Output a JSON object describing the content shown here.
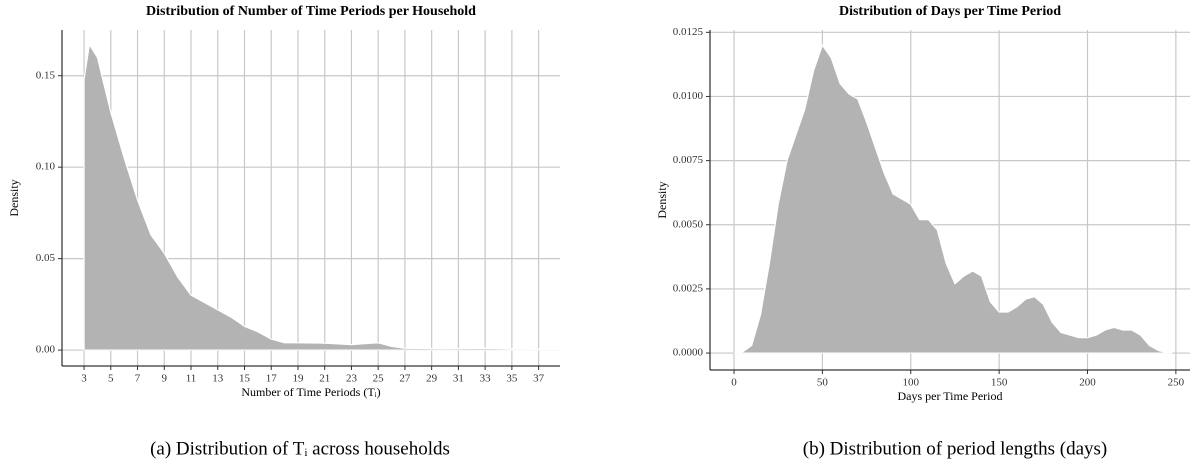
{
  "chart_data": [
    {
      "type": "area",
      "title": "Distribution of Number of Time Periods per Household",
      "x_label": "Number of Time Periods (Tᵢ)",
      "y_label": "Density",
      "caption": "(a) Distribution of Tᵢ across households",
      "x": [
        3,
        3.4,
        4,
        5,
        6,
        7,
        8,
        9,
        10,
        11,
        12,
        13,
        14,
        15,
        16,
        17,
        18,
        19,
        21,
        23,
        24,
        25,
        26,
        27,
        30,
        33,
        35,
        38.6
      ],
      "values": [
        0.148,
        0.167,
        0.16,
        0.13,
        0.105,
        0.082,
        0.063,
        0.053,
        0.04,
        0.03,
        0.026,
        0.022,
        0.018,
        0.013,
        0.01,
        0.006,
        0.004,
        0.004,
        0.0038,
        0.003,
        0.0035,
        0.004,
        0.002,
        0.001,
        0.0008,
        0.001,
        0.0007,
        0.0005
      ],
      "color": "#b3b3b3",
      "xlim": [
        1.35,
        38.6
      ],
      "ylim": [
        -0.0087,
        0.175
      ],
      "xticks": [
        3,
        5,
        7,
        9,
        11,
        13,
        15,
        17,
        19,
        21,
        23,
        25,
        27,
        29,
        31,
        33,
        35,
        37
      ],
      "yticks": [
        {
          "value": 0,
          "label": "0.00"
        },
        {
          "value": 0.05,
          "label": "0.05"
        },
        {
          "value": 0.1,
          "label": "0.10"
        },
        {
          "value": 0.15,
          "label": "0.15"
        }
      ],
      "grid": true
    },
    {
      "type": "area",
      "title": "Distribution of Days per Time Period",
      "x_label": "Days per Time Period",
      "y_label": "Density",
      "caption": "(b) Distribution of period lengths (days)",
      "x": [
        0,
        5,
        10,
        15,
        20,
        25,
        30,
        35,
        40,
        45,
        50,
        55,
        60,
        65,
        70,
        75,
        80,
        85,
        90,
        95,
        100,
        105,
        110,
        115,
        120,
        125,
        130,
        135,
        140,
        145,
        150,
        155,
        160,
        165,
        170,
        175,
        180,
        185,
        190,
        195,
        200,
        205,
        210,
        215,
        220,
        225,
        230,
        235,
        240,
        245,
        248
      ],
      "values": [
        0,
        5e-05,
        0.0003,
        0.0015,
        0.0035,
        0.0058,
        0.0075,
        0.0085,
        0.0095,
        0.011,
        0.012,
        0.0115,
        0.0105,
        0.0101,
        0.0099,
        0.009,
        0.008,
        0.007,
        0.0062,
        0.006,
        0.0058,
        0.0052,
        0.0052,
        0.0048,
        0.0035,
        0.0027,
        0.003,
        0.0032,
        0.003,
        0.002,
        0.0016,
        0.0016,
        0.0018,
        0.0021,
        0.0022,
        0.0019,
        0.0012,
        0.0008,
        0.0007,
        0.0006,
        0.0006,
        0.0007,
        0.0009,
        0.001,
        0.0009,
        0.0009,
        0.0007,
        0.0003,
        0.0001,
        1e-05,
        0
      ],
      "color": "#b3b3b3",
      "xlim": [
        -13.6,
        258
      ],
      "ylim": [
        -0.00066,
        0.01259
      ],
      "xticks": [
        0,
        50,
        100,
        150,
        200,
        250
      ],
      "yticks": [
        {
          "value": 0,
          "label": "0.0000"
        },
        {
          "value": 0.0025,
          "label": "0.0025"
        },
        {
          "value": 0.005,
          "label": "0.0050"
        },
        {
          "value": 0.0075,
          "label": "0.0075"
        },
        {
          "value": 0.01,
          "label": "0.0100"
        },
        {
          "value": 0.0125,
          "label": "0.0125"
        }
      ],
      "grid": true
    }
  ]
}
